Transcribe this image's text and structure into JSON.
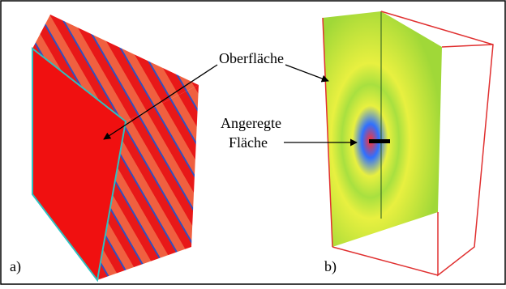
{
  "panels": [
    {
      "label": "a)"
    },
    {
      "label": "b)"
    }
  ],
  "annotations": [
    {
      "text": "Oberfläche"
    },
    {
      "lines": [
        "Angeregte",
        "Fläche"
      ]
    }
  ]
}
